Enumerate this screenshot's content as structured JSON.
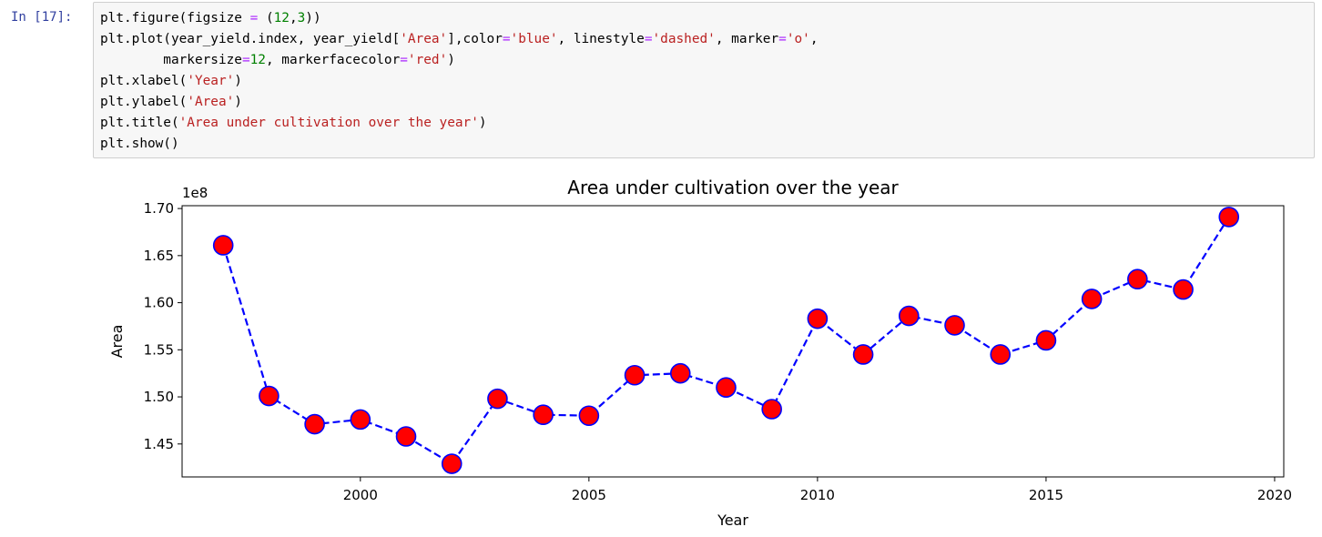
{
  "cell": {
    "prompt": "In [17]:",
    "code_lines": [
      [
        {
          "t": "plt.figure(figsize "
        },
        {
          "t": "=",
          "c": "o"
        },
        {
          "t": " ("
        },
        {
          "t": "12",
          "c": "n"
        },
        {
          "t": ","
        },
        {
          "t": "3",
          "c": "n"
        },
        {
          "t": "))"
        }
      ],
      [
        {
          "t": "plt.plot(year_yield.index, year_yield["
        },
        {
          "t": "'Area'",
          "c": "s"
        },
        {
          "t": "],color"
        },
        {
          "t": "=",
          "c": "o"
        },
        {
          "t": "'blue'",
          "c": "s"
        },
        {
          "t": ", linestyle"
        },
        {
          "t": "=",
          "c": "o"
        },
        {
          "t": "'dashed'",
          "c": "s"
        },
        {
          "t": ", marker"
        },
        {
          "t": "=",
          "c": "o"
        },
        {
          "t": "'o'",
          "c": "s"
        },
        {
          "t": ","
        }
      ],
      [
        {
          "t": "        markersize"
        },
        {
          "t": "=",
          "c": "o"
        },
        {
          "t": "12",
          "c": "n"
        },
        {
          "t": ", markerfacecolor"
        },
        {
          "t": "=",
          "c": "o"
        },
        {
          "t": "'red'",
          "c": "s"
        },
        {
          "t": ")"
        }
      ],
      [
        {
          "t": "plt.xlabel("
        },
        {
          "t": "'Year'",
          "c": "s"
        },
        {
          "t": ")"
        }
      ],
      [
        {
          "t": "plt.ylabel("
        },
        {
          "t": "'Area'",
          "c": "s"
        },
        {
          "t": ")"
        }
      ],
      [
        {
          "t": "plt.title("
        },
        {
          "t": "'Area under cultivation over the year'",
          "c": "s"
        },
        {
          "t": ")"
        }
      ],
      [
        {
          "t": "plt.show()"
        }
      ]
    ]
  },
  "chart_data": {
    "type": "line",
    "title": "Area under cultivation over the year",
    "xlabel": "Year",
    "ylabel": "Area",
    "offset_label": "1e8",
    "x": [
      1997,
      1998,
      1999,
      2000,
      2001,
      2002,
      2003,
      2004,
      2005,
      2006,
      2007,
      2008,
      2009,
      2010,
      2011,
      2012,
      2013,
      2014,
      2015,
      2016,
      2017,
      2018,
      2019
    ],
    "series": [
      {
        "values": [
          1.661,
          1.501,
          1.471,
          1.476,
          1.458,
          1.429,
          1.498,
          1.481,
          1.48,
          1.523,
          1.525,
          1.51,
          1.487,
          1.583,
          1.545,
          1.586,
          1.576,
          1.545,
          1.56,
          1.604,
          1.625,
          1.614,
          1.691
        ],
        "color": "#0000ff",
        "linestyle": "dashed",
        "marker": "o",
        "markerfacecolor": "#ff0000"
      }
    ],
    "xlim": [
      1996.1,
      2020.2
    ],
    "ylim": [
      1.415,
      1.703
    ],
    "xticks": [
      2000,
      2005,
      2010,
      2015,
      2020
    ],
    "xtick_labels": [
      "2000",
      "2005",
      "2010",
      "2015",
      "2020"
    ],
    "yticks": [
      1.45,
      1.5,
      1.55,
      1.6,
      1.65,
      1.7
    ],
    "ytick_labels": [
      "1.45",
      "1.50",
      "1.55",
      "1.60",
      "1.65",
      "1.70"
    ],
    "grid": false
  }
}
